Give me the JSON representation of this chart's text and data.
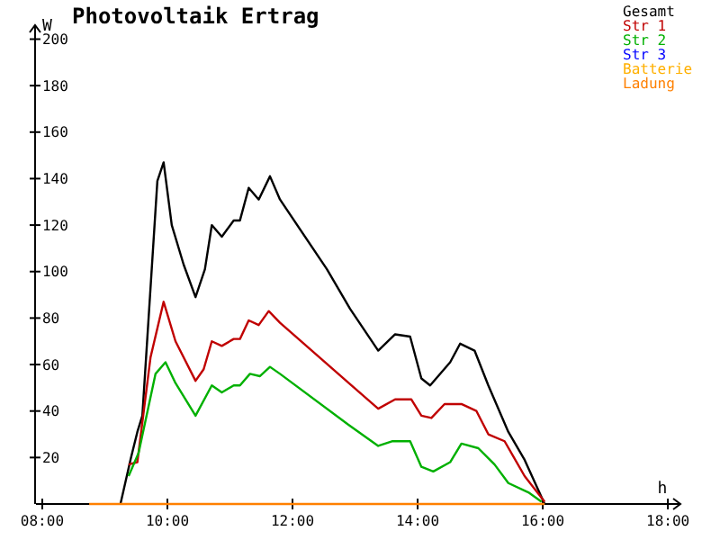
{
  "chart_data": {
    "type": "line",
    "title": "Photovoltaik Ertrag",
    "ylabel": "W",
    "xlabel": "h",
    "xlim": [
      7.9,
      18.2
    ],
    "ylim": [
      0,
      206
    ],
    "xticks": [
      {
        "value": 8,
        "label": "08:00"
      },
      {
        "value": 10,
        "label": "10:00"
      },
      {
        "value": 12,
        "label": "12:00"
      },
      {
        "value": 14,
        "label": "14:00"
      },
      {
        "value": 16,
        "label": "16:00"
      },
      {
        "value": 18,
        "label": "18:00"
      }
    ],
    "yticks": [
      20,
      40,
      60,
      80,
      100,
      120,
      140,
      160,
      180,
      200
    ],
    "grid": false,
    "legend": "top right",
    "marker": "none",
    "line_style": "solid",
    "series": [
      {
        "name": "Gesamt",
        "color": "#000000",
        "x": [
          9.25,
          9.41,
          9.52,
          9.6,
          9.84,
          9.94,
          10.07,
          10.26,
          10.45,
          10.6,
          10.71,
          10.87,
          11.06,
          11.16,
          11.3,
          11.46,
          11.64,
          11.8,
          12.55,
          12.92,
          13.37,
          13.64,
          13.88,
          14.06,
          14.2,
          14.52,
          14.68,
          14.91,
          15.13,
          15.45,
          15.71,
          16.03
        ],
        "values": [
          0,
          19,
          31,
          38,
          139,
          147,
          120,
          103,
          89,
          101,
          120,
          115,
          122,
          122,
          136,
          131,
          141,
          131,
          101,
          84,
          66,
          73,
          72,
          54,
          51,
          61,
          69,
          66,
          51,
          31,
          19,
          0
        ]
      },
      {
        "name": "Str 1",
        "color": "#c00000",
        "x": [
          9.38,
          9.52,
          9.73,
          9.94,
          10.13,
          10.45,
          10.58,
          10.71,
          10.87,
          11.06,
          11.16,
          11.3,
          11.46,
          11.62,
          11.8,
          12.9,
          13.37,
          13.64,
          13.9,
          14.06,
          14.22,
          14.43,
          14.7,
          14.94,
          15.13,
          15.39,
          15.71,
          16.03
        ],
        "values": [
          17,
          18,
          63,
          87,
          70,
          53,
          58,
          70,
          68,
          71,
          71,
          79,
          77,
          83,
          78,
          52,
          41,
          45,
          45,
          38,
          37,
          43,
          43,
          40,
          30,
          27,
          12,
          1
        ]
      },
      {
        "name": "Str 2",
        "color": "#00b000",
        "x": [
          9.38,
          9.54,
          9.81,
          9.97,
          10.13,
          10.45,
          10.71,
          10.87,
          11.06,
          11.16,
          11.32,
          11.48,
          11.64,
          11.8,
          12.9,
          13.37,
          13.59,
          13.88,
          14.06,
          14.25,
          14.52,
          14.7,
          14.97,
          15.23,
          15.45,
          15.77,
          15.98
        ],
        "values": [
          12,
          22,
          56,
          61,
          52,
          38,
          51,
          48,
          51,
          51,
          56,
          55,
          59,
          56,
          34,
          25,
          27,
          27,
          16,
          14,
          18,
          26,
          24,
          17,
          9,
          5,
          1
        ]
      },
      {
        "name": "Str 3",
        "color": "#0000ff"
      },
      {
        "name": "Batterie",
        "color": "#ffb000"
      },
      {
        "name": "Ladung",
        "color": "#ff8000",
        "x": [
          8.75,
          16.03
        ],
        "values": [
          0,
          0
        ]
      }
    ]
  }
}
